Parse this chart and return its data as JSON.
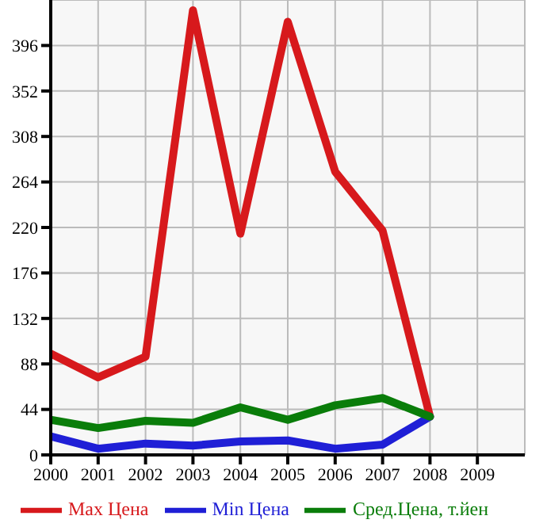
{
  "chart_data": {
    "type": "line",
    "x": [
      2000,
      2001,
      2002,
      2003,
      2004,
      2005,
      2006,
      2007,
      2008
    ],
    "series": [
      {
        "name": "Max Цена",
        "color": "#d7191c",
        "values": [
          98,
          75,
          95,
          430,
          214,
          419,
          274,
          217,
          37
        ]
      },
      {
        "name": "Min Цена",
        "color": "#1f1fd6",
        "values": [
          18,
          6,
          11,
          9,
          13,
          14,
          6,
          10,
          37
        ]
      },
      {
        "name": "Сред.Цена, т.йен",
        "color": "#0a7d0a",
        "values": [
          34,
          26,
          33,
          31,
          46,
          34,
          48,
          55,
          37
        ]
      }
    ],
    "xlim": [
      2000,
      2010
    ],
    "xticks": [
      2000,
      2001,
      2002,
      2003,
      2004,
      2005,
      2006,
      2007,
      2008,
      2009
    ],
    "ylim": [
      0,
      440
    ],
    "yticks": [
      0,
      44,
      88,
      132,
      176,
      220,
      264,
      308,
      352,
      396
    ],
    "grid": true,
    "legend": "bottom",
    "marker": "none",
    "line_style": "solid"
  }
}
